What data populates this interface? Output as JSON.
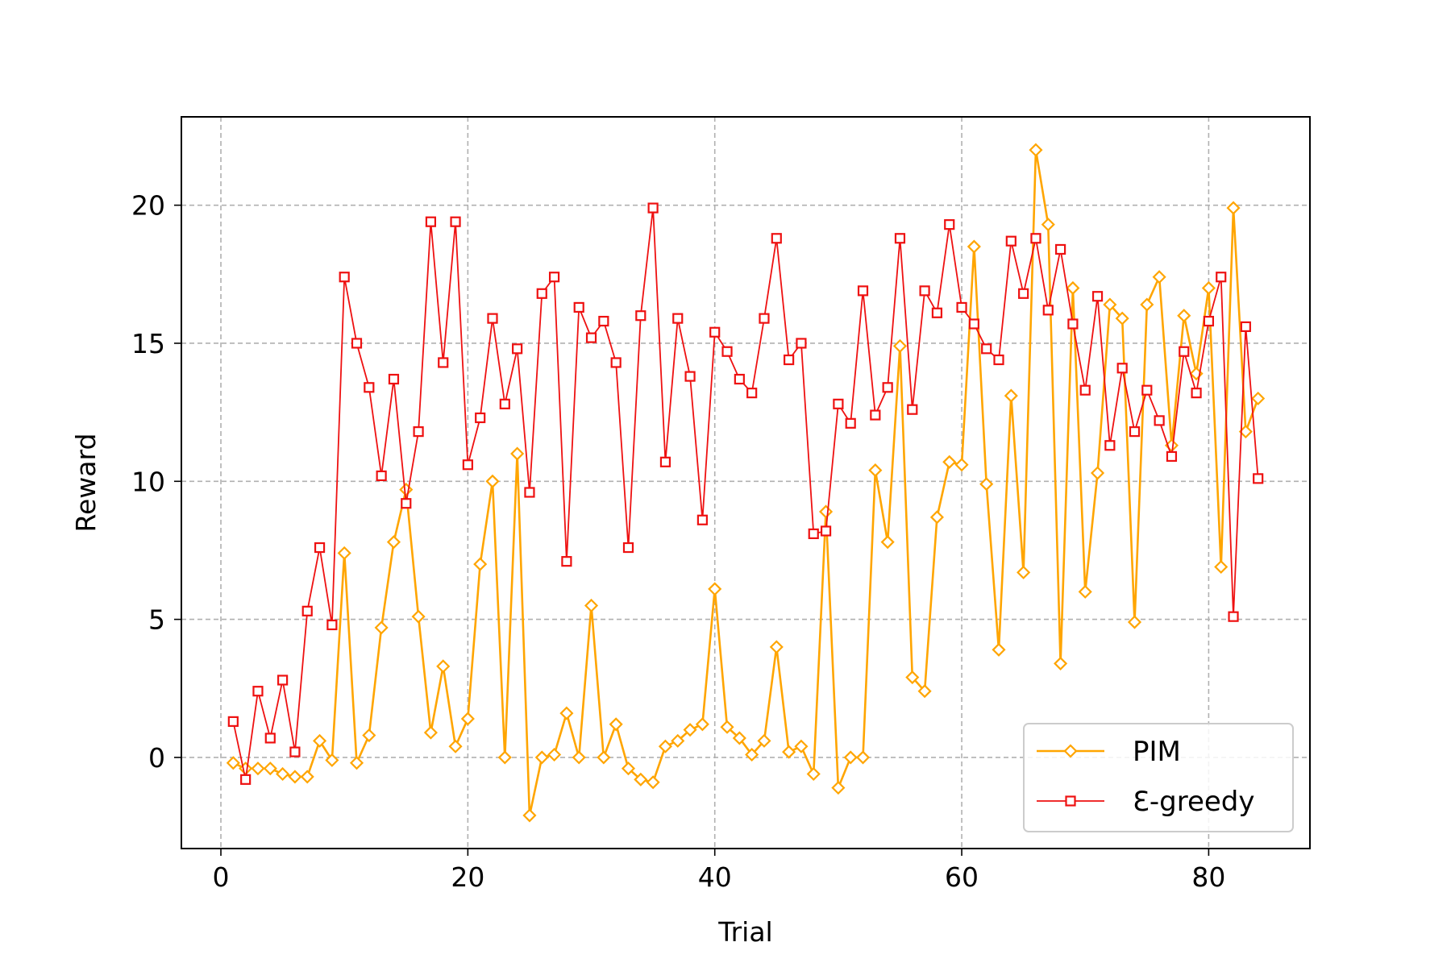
{
  "chart_data": {
    "type": "line",
    "title": "",
    "xlabel": "Trial",
    "ylabel": "Reward",
    "xlim": [
      -3.2,
      88.2
    ],
    "ylim": [
      -3.3,
      23.2
    ],
    "xticks": [
      0,
      20,
      40,
      60,
      80
    ],
    "yticks": [
      0,
      5,
      10,
      15,
      20
    ],
    "grid": true,
    "legend_position": "lower-right",
    "series": [
      {
        "name": "PIM",
        "color": "#ffa500",
        "marker": "diamond",
        "x": [
          1,
          2,
          3,
          4,
          5,
          6,
          7,
          8,
          9,
          10,
          11,
          12,
          13,
          14,
          15,
          16,
          17,
          18,
          19,
          20,
          21,
          22,
          23,
          24,
          25,
          26,
          27,
          28,
          29,
          30,
          31,
          32,
          33,
          34,
          35,
          36,
          37,
          38,
          39,
          40,
          41,
          42,
          43,
          44,
          45,
          46,
          47,
          48,
          49,
          50,
          51,
          52,
          53,
          54,
          55,
          56,
          57,
          58,
          59,
          60,
          61,
          62,
          63,
          64,
          65,
          66,
          67,
          68,
          69,
          70,
          71,
          72,
          73,
          74,
          75,
          76,
          77,
          78,
          79,
          80,
          81,
          82,
          83,
          84
        ],
        "values": [
          -0.2,
          -0.4,
          -0.4,
          -0.4,
          -0.6,
          -0.7,
          -0.7,
          0.6,
          -0.1,
          7.4,
          -0.2,
          0.8,
          4.7,
          7.8,
          9.7,
          5.1,
          0.9,
          3.3,
          0.4,
          1.4,
          7.0,
          10.0,
          0.0,
          11.0,
          -2.1,
          0.0,
          0.1,
          1.6,
          0.0,
          5.5,
          0.0,
          1.2,
          -0.4,
          -0.8,
          -0.9,
          0.4,
          0.6,
          1.0,
          1.2,
          6.1,
          1.1,
          0.7,
          0.1,
          0.6,
          4.0,
          0.2,
          0.4,
          -0.6,
          8.9,
          -1.1,
          0.0,
          0.0,
          10.4,
          7.8,
          14.9,
          2.9,
          2.4,
          8.7,
          10.7,
          10.6,
          18.5,
          9.9,
          3.9,
          13.1,
          6.7,
          22.0,
          19.3,
          3.4,
          17.0,
          6.0,
          10.3,
          16.4,
          15.9,
          4.9,
          16.4,
          17.4,
          11.3,
          16.0,
          13.9,
          17.0,
          6.9,
          19.9,
          11.8,
          13.0
        ]
      },
      {
        "name": "Ɛ-greedy",
        "color": "#ee1111",
        "marker": "square",
        "x": [
          1,
          2,
          3,
          4,
          5,
          6,
          7,
          8,
          9,
          10,
          11,
          12,
          13,
          14,
          15,
          16,
          17,
          18,
          19,
          20,
          21,
          22,
          23,
          24,
          25,
          26,
          27,
          28,
          29,
          30,
          31,
          32,
          33,
          34,
          35,
          36,
          37,
          38,
          39,
          40,
          41,
          42,
          43,
          44,
          45,
          46,
          47,
          48,
          49,
          50,
          51,
          52,
          53,
          54,
          55,
          56,
          57,
          58,
          59,
          60,
          61,
          62,
          63,
          64,
          65,
          66,
          67,
          68,
          69,
          70,
          71,
          72,
          73,
          74,
          75,
          76,
          77,
          78,
          79,
          80,
          81,
          82,
          83,
          84
        ],
        "values": [
          1.3,
          -0.8,
          2.4,
          0.7,
          2.8,
          0.2,
          5.3,
          7.6,
          4.8,
          17.4,
          15.0,
          13.4,
          10.2,
          13.7,
          9.2,
          11.8,
          19.4,
          14.3,
          19.4,
          10.6,
          12.3,
          15.9,
          12.8,
          14.8,
          9.6,
          16.8,
          17.4,
          7.1,
          16.3,
          15.2,
          15.8,
          14.3,
          7.6,
          16.0,
          19.9,
          10.7,
          15.9,
          13.8,
          8.6,
          15.4,
          14.7,
          13.7,
          13.2,
          15.9,
          18.8,
          14.4,
          15.0,
          8.1,
          8.2,
          12.8,
          12.1,
          16.9,
          12.4,
          13.4,
          18.8,
          12.6,
          16.9,
          16.1,
          19.3,
          16.3,
          15.7,
          14.8,
          14.4,
          18.7,
          16.8,
          18.8,
          16.2,
          18.4,
          15.7,
          13.3,
          16.7,
          11.3,
          14.1,
          11.8,
          13.3,
          12.2,
          10.9,
          14.7,
          13.2,
          15.8,
          17.4,
          5.1,
          15.6,
          10.1
        ]
      }
    ]
  }
}
